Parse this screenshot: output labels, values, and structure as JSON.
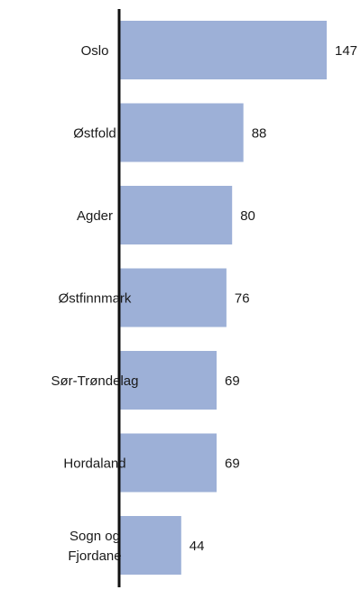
{
  "chart_data": {
    "type": "bar",
    "orientation": "horizontal",
    "title": "",
    "xlabel": "",
    "ylabel": "",
    "categories": [
      "Oslo",
      "Østfold",
      "Agder",
      "Østfinnmark",
      "Sør-Trøndelag",
      "Hordaland",
      "Sogn og Fjordane"
    ],
    "category_lines": [
      [
        "Oslo"
      ],
      [
        "Østfold"
      ],
      [
        "Agder"
      ],
      [
        "Østfinnmark"
      ],
      [
        "Sør-Trøndelag"
      ],
      [
        "Hordaland"
      ],
      [
        "Sogn og",
        "Fjordane"
      ]
    ],
    "values": [
      147,
      88,
      80,
      76,
      69,
      69,
      44
    ],
    "data_labels": [
      "147",
      "88",
      "80",
      "76",
      "69",
      "69",
      "44"
    ],
    "xlim": [
      0,
      147
    ],
    "grid": false,
    "legend": "none",
    "colors": {
      "bar": "#9db0d7",
      "axis": "#111111",
      "text": "#1a1a1a"
    }
  }
}
